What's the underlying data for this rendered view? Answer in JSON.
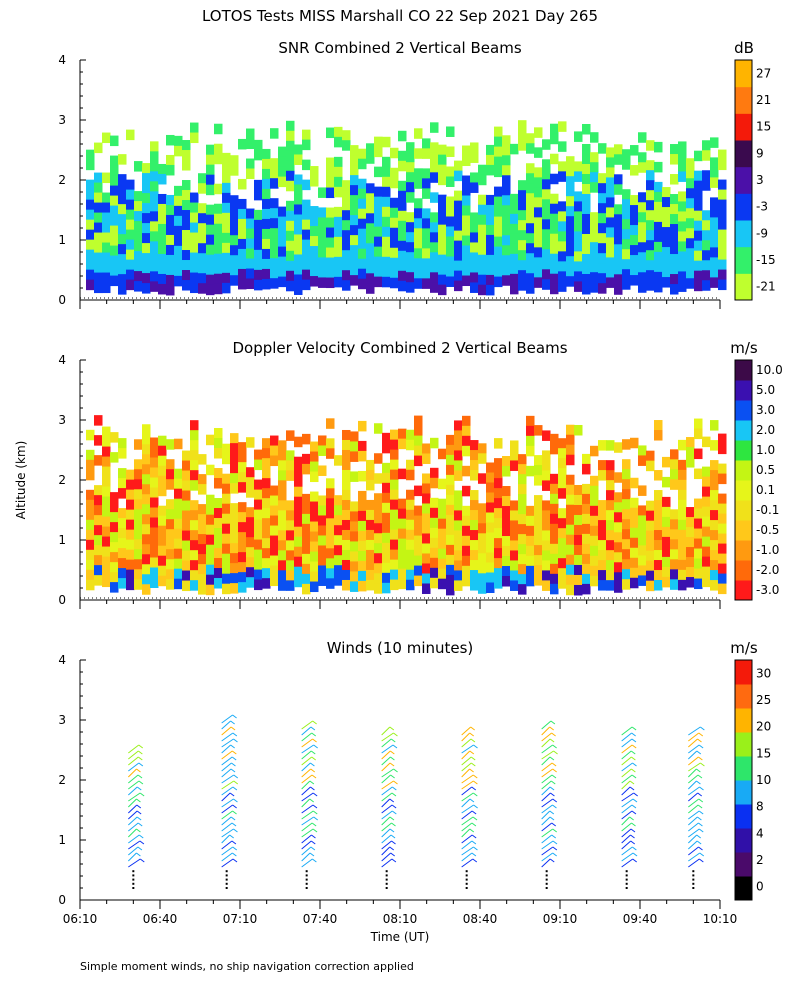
{
  "figure": {
    "title": "LOTOS Tests MISS Marshall CO  22 Sep 2021 Day 265",
    "y_axis_label": "Altitude (km)",
    "footnote": "Simple moment winds, no ship navigation correction applied"
  },
  "chart_data": [
    {
      "type": "heatmap",
      "title": "SNR Combined 2 Vertical Beams",
      "unit": "dB",
      "ylabel": "",
      "ylim": [
        0,
        4
      ],
      "y_ticks": [
        "0",
        "1",
        "2",
        "3",
        "4"
      ],
      "x_ticks": [],
      "x_range": [
        "06:10",
        "10:10"
      ],
      "data_altitude_range_km": [
        0.25,
        3.0
      ],
      "colorbar": {
        "labels": [
          "-21",
          "-15",
          "-9",
          "-3",
          "3",
          "9",
          "15",
          "21",
          "27"
        ],
        "colors": [
          "#bfff2e",
          "#33f06a",
          "#18c6f5",
          "#0a38f2",
          "#4b10a8",
          "#3a0a4e",
          "#f41a0a",
          "#ff7a10",
          "#ffb400"
        ]
      }
    },
    {
      "type": "heatmap",
      "title": "Doppler Velocity Combined 2 Vertical Beams",
      "unit": "m/s",
      "ylabel": "Altitude (km)",
      "ylim": [
        0,
        4
      ],
      "y_ticks": [
        "0",
        "1",
        "2",
        "3",
        "4"
      ],
      "x_ticks": [],
      "x_range": [
        "06:10",
        "10:10"
      ],
      "data_altitude_range_km": [
        0.25,
        3.1
      ],
      "colorbar": {
        "labels": [
          "-3.0",
          "-2.0",
          "-1.0",
          "-0.5",
          "-0.1",
          "0.1",
          "0.5",
          "1.0",
          "2.0",
          "3.0",
          "5.0",
          "10.0"
        ],
        "colors": [
          "#ff1a1a",
          "#ff6a0a",
          "#ff9a10",
          "#ffc81a",
          "#f0e11a",
          "#e6f51a",
          "#c4f514",
          "#2ee640",
          "#18c6f5",
          "#0a50f2",
          "#3a10b0",
          "#3c0a48"
        ]
      }
    },
    {
      "type": "scatter",
      "title": "Winds (10 minutes)",
      "unit": "m/s",
      "xlabel": "Time (UT)",
      "ylabel": "",
      "ylim": [
        0,
        4
      ],
      "y_ticks": [
        "0",
        "1",
        "2",
        "3",
        "4"
      ],
      "x_ticks": [
        "06:10",
        "06:40",
        "07:10",
        "07:40",
        "08:10",
        "08:40",
        "09:10",
        "09:40",
        "10:10"
      ],
      "profile_times": [
        "06:30",
        "07:05",
        "07:35",
        "08:05",
        "08:35",
        "09:05",
        "09:35",
        "10:00"
      ],
      "colorbar": {
        "labels": [
          "0",
          "2",
          "4",
          "8",
          "10",
          "15",
          "20",
          "25",
          "30"
        ],
        "colors": [
          "#000000",
          "#4a0a6a",
          "#3010a8",
          "#0a30f2",
          "#18aaf5",
          "#2ee66a",
          "#9af01a",
          "#ffb400",
          "#ff6a10",
          "#f41a0a"
        ]
      }
    }
  ]
}
